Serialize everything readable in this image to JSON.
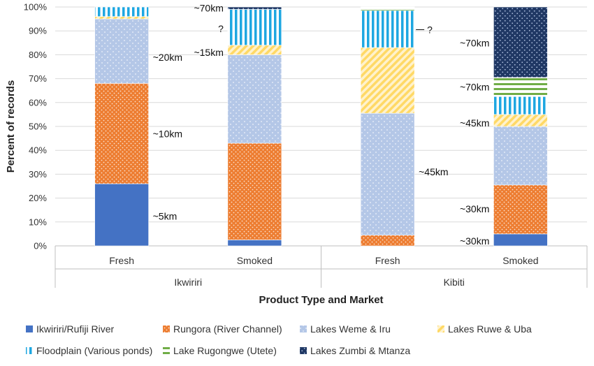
{
  "chart_data": {
    "type": "bar",
    "stacked": true,
    "ylabel": "Percent of records",
    "xlabel": "Product Type and Market",
    "ylim": [
      0,
      100
    ],
    "yticks": [
      "0%",
      "10%",
      "20%",
      "30%",
      "40%",
      "50%",
      "60%",
      "70%",
      "80%",
      "90%",
      "100%"
    ],
    "categories": [
      "Fresh",
      "Smoked",
      "Fresh",
      "Smoked"
    ],
    "groups": [
      {
        "label": "Ikwiriri",
        "span": [
          0,
          1
        ]
      },
      {
        "label": "Kibiti",
        "span": [
          2,
          3
        ]
      }
    ],
    "series": [
      {
        "name": "Ikwiriri/Rufiji River",
        "color": "#4472C4",
        "pattern": "solid",
        "values": [
          26,
          2.5,
          0,
          5
        ]
      },
      {
        "name": "Rungora (River Channel)",
        "color": "#ED7D31",
        "pattern": "dots",
        "values": [
          42,
          40.5,
          4.5,
          20.5
        ]
      },
      {
        "name": "Lakes Weme & Iru",
        "color": "#B4C7E7",
        "pattern": "dots",
        "values": [
          27,
          37,
          51,
          24.5
        ]
      },
      {
        "name": "Lakes Ruwe & Uba",
        "color": "#FFD966",
        "pattern": "diagonal",
        "values": [
          1,
          4,
          27.5,
          5
        ]
      },
      {
        "name": "Floodplain (Various ponds)",
        "color": "#1EA7E1",
        "pattern": "vertical",
        "values": [
          4,
          15,
          15.5,
          7.5
        ]
      },
      {
        "name": "Lake Rugongwe (Utete)",
        "color": "#70AD47",
        "pattern": "horizontal",
        "values": [
          0,
          0,
          1.5,
          8
        ]
      },
      {
        "name": "Lakes Zumbi & Mtanza",
        "color": "#203864",
        "pattern": "dots",
        "values": [
          0,
          1,
          0,
          29.5
        ]
      }
    ],
    "annotations": [
      {
        "bar": 0,
        "y": 79,
        "text": "~20km"
      },
      {
        "bar": 0,
        "y": 47,
        "text": "~10km"
      },
      {
        "bar": 0,
        "y": 12.5,
        "text": "~5km"
      },
      {
        "bar": 1,
        "y": 99.5,
        "text": "~70km",
        "side": "left"
      },
      {
        "bar": 1,
        "y": 91,
        "text": "?",
        "side": "left"
      },
      {
        "bar": 1,
        "y": 81,
        "text": "~15km",
        "side": "left"
      },
      {
        "bar": 2,
        "y": 90.5,
        "text": "?",
        "side": "right",
        "leader": true
      },
      {
        "bar": 2,
        "y": 31,
        "text": "~45km"
      },
      {
        "bar": 3,
        "y": 85,
        "text": "~70km",
        "side": "left"
      },
      {
        "bar": 3,
        "y": 66.5,
        "text": "~70km",
        "side": "left"
      },
      {
        "bar": 3,
        "y": 51.5,
        "text": "~45km",
        "side": "left"
      },
      {
        "bar": 3,
        "y": 15.5,
        "text": "~30km",
        "side": "left"
      },
      {
        "bar": 3,
        "y": 2,
        "text": "~30km",
        "side": "left"
      }
    ]
  }
}
